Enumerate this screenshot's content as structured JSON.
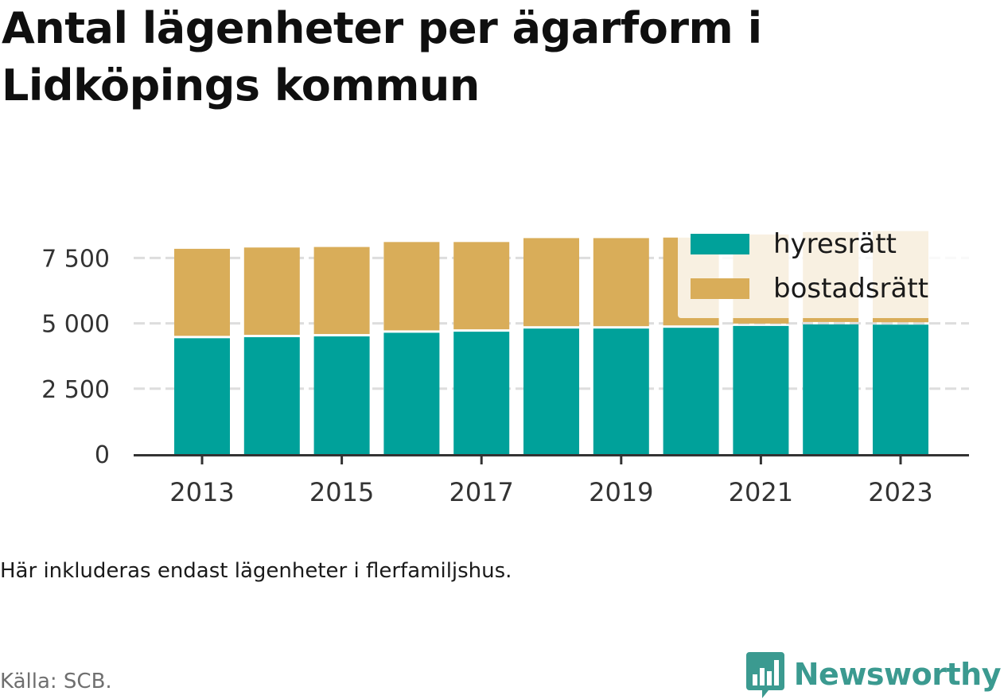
{
  "title": "Antal lägenheter per ägarform i Lidköpings kommun",
  "note": "Här inkluderas endast lägenheter i flerfamiljshus.",
  "source": "Källa: SCB.",
  "logo": {
    "name": "Newsworthy",
    "icon": "bar-chart-speech-bubble-icon",
    "color": "#3b9a90"
  },
  "colors": {
    "hyresratt": "#00a19a",
    "bostadsratt": "#d9ad59",
    "grid": "#dddddd",
    "axis": "#333333"
  },
  "chart_data": {
    "type": "bar",
    "stacked": true,
    "categories": [
      "2013",
      "2014",
      "2015",
      "2016",
      "2017",
      "2018",
      "2019",
      "2020",
      "2021",
      "2022",
      "2023"
    ],
    "x_tick_labels": [
      "2013",
      "2015",
      "2017",
      "2019",
      "2021",
      "2023"
    ],
    "series": [
      {
        "name": "hyresrätt",
        "color": "#00a19a",
        "values": [
          4430,
          4470,
          4500,
          4640,
          4680,
          4800,
          4800,
          4830,
          4900,
          4960,
          4950
        ]
      },
      {
        "name": "bostadsrätt",
        "color": "#d9ad59",
        "values": [
          3420,
          3430,
          3420,
          3470,
          3430,
          3460,
          3460,
          3450,
          3500,
          3530,
          3580
        ]
      }
    ],
    "ylim": [
      0,
      8500
    ],
    "yticks": [
      0,
      2500,
      5000,
      7500
    ],
    "ytick_labels": [
      "0",
      "2 500",
      "5 000",
      "7 500"
    ],
    "grid": true,
    "legend": {
      "placement": "top-right",
      "items": [
        "hyresrätt",
        "bostadsrätt"
      ]
    }
  }
}
